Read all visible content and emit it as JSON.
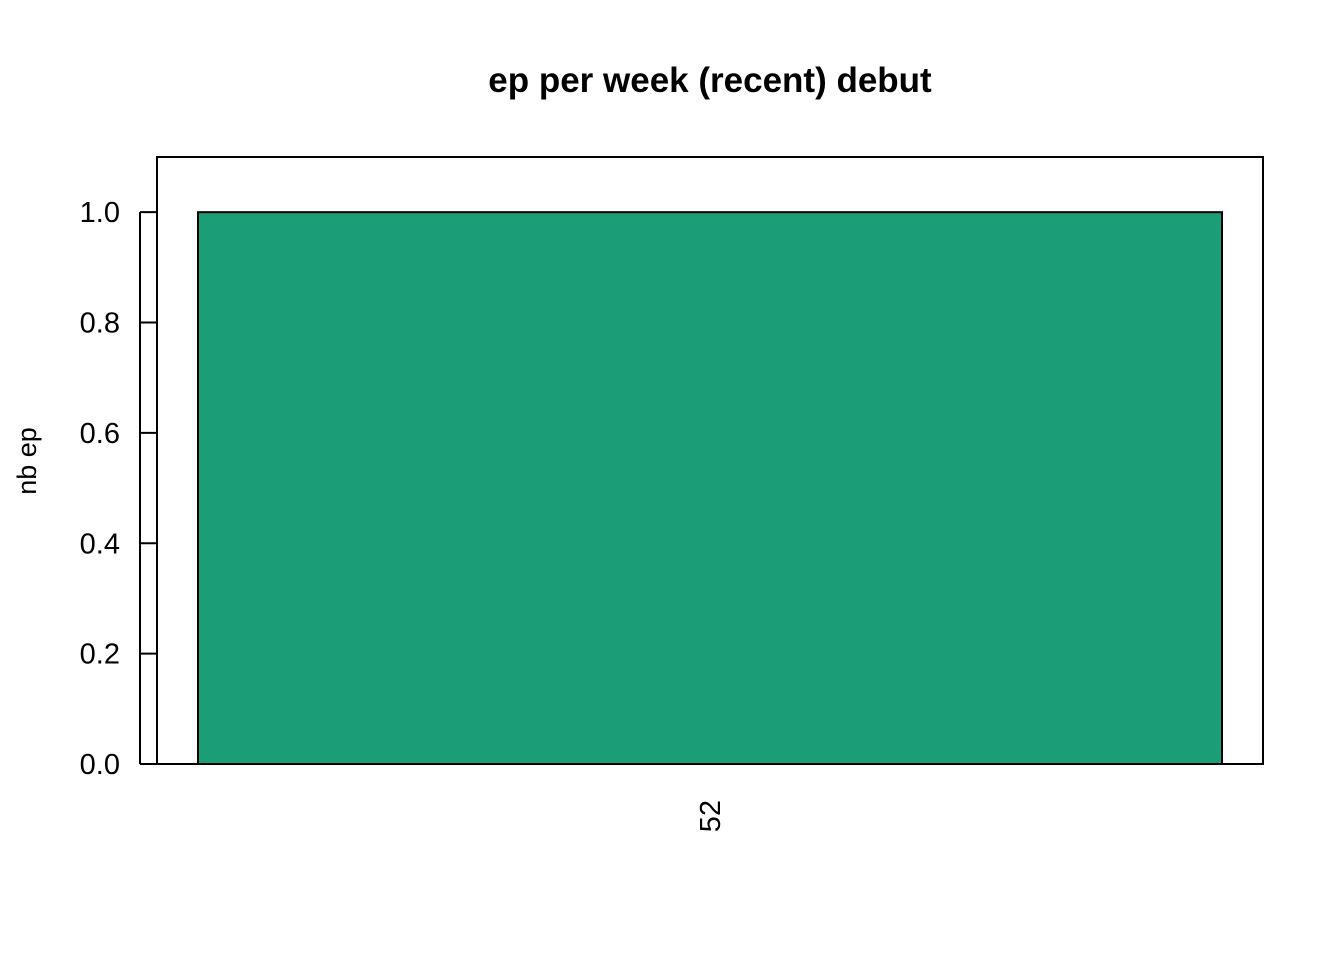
{
  "chart_data": {
    "type": "bar",
    "title": "ep per week (recent) debut",
    "xlabel": "",
    "ylabel": "nb ep",
    "categories": [
      "52"
    ],
    "values": [
      1.0
    ],
    "ylim": [
      0,
      1.1
    ],
    "yticks": [
      "0.0",
      "0.2",
      "0.4",
      "0.6",
      "0.8",
      "1.0"
    ],
    "bar_color": "#1B9E77",
    "grid": false,
    "legend": "none"
  }
}
